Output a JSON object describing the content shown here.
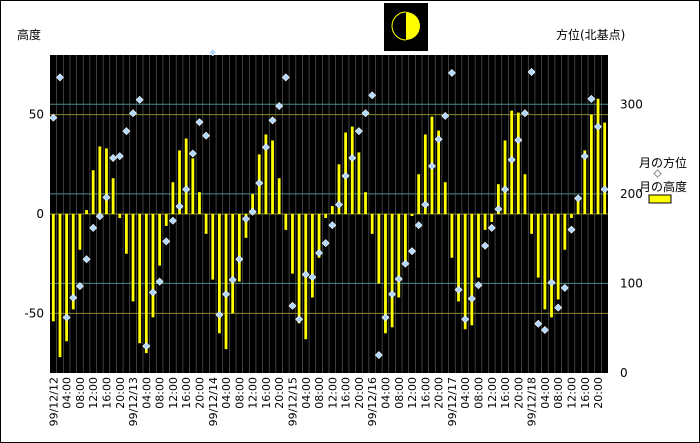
{
  "chart_data": {
    "type": "bar",
    "title": "",
    "y_left_label": "高度",
    "y_right_label": "方位(北基点)",
    "y_left_ticks": [
      50,
      0,
      -50
    ],
    "y_right_ticks": [
      300,
      200,
      100,
      0
    ],
    "ylim_left": [
      -80,
      80
    ],
    "ylim_right": [
      0,
      355
    ],
    "grid": true,
    "legend_position": "right",
    "x_tick_labels": [
      "99/12/12",
      "04:00",
      "08:00",
      "12:00",
      "16:00",
      "20:00",
      "99/12/13",
      "04:00",
      "08:00",
      "12:00",
      "16:00",
      "20:00",
      "99/12/14",
      "04:00",
      "08:00",
      "12:00",
      "16:00",
      "20:00",
      "99/12/15",
      "04:00",
      "08:00",
      "12:00",
      "16:00",
      "20:00",
      "99/12/16",
      "04:00",
      "08:00",
      "12:00",
      "16:00",
      "20:00",
      "99/12/17",
      "04:00",
      "08:00",
      "12:00",
      "16:00",
      "20:00",
      "99/12/18",
      "04:00",
      "08:00",
      "12:00",
      "16:00",
      "20:00"
    ],
    "series": [
      {
        "name": "月の高度",
        "type": "bar",
        "axis": "left",
        "color": "#ffff00",
        "values": [
          -54,
          -72,
          -64,
          -48,
          -18,
          2,
          22,
          34,
          33,
          18,
          -2,
          -20,
          -44,
          -65,
          -70,
          -52,
          -26,
          -6,
          16,
          32,
          38,
          28,
          11,
          -10,
          -33,
          -60,
          -68,
          -50,
          -34,
          -12,
          10,
          30,
          40,
          37,
          18,
          -8,
          -30,
          -55,
          -63,
          -42,
          -22,
          -2,
          4,
          25,
          41,
          44,
          31,
          11,
          -10,
          -35,
          -60,
          -57,
          -42,
          -24,
          -1,
          20,
          40,
          49,
          42,
          16,
          -22,
          -44,
          -58,
          -56,
          -32,
          -8,
          -4,
          15,
          37,
          52,
          51,
          20,
          -10,
          -32,
          -48,
          -52,
          -43,
          -18,
          -2,
          7,
          32,
          50,
          58,
          46
        ]
      },
      {
        "name": "月の方位",
        "type": "scatter",
        "axis": "right",
        "color": "#b0d8ff",
        "values": [
          285,
          330,
          62,
          84,
          97,
          127,
          162,
          175,
          196,
          240,
          242,
          270,
          290,
          305,
          30,
          90,
          102,
          147,
          170,
          186,
          205,
          245,
          280,
          265,
          358,
          65,
          88,
          104,
          127,
          172,
          180,
          212,
          252,
          282,
          298,
          330,
          75,
          60,
          110,
          107,
          134,
          145,
          165,
          188,
          220,
          240,
          270,
          290,
          310,
          20,
          62,
          88,
          105,
          122,
          136,
          165,
          188,
          231,
          261,
          287,
          335,
          93,
          60,
          83,
          98,
          142,
          162,
          183,
          205,
          238,
          260,
          290,
          336,
          55,
          48,
          101,
          73,
          95,
          160,
          195,
          242,
          306,
          275,
          205
        ]
      }
    ]
  },
  "legend": {
    "azimuth_label": "月の方位",
    "altitude_label": "月の高度"
  },
  "moon_icon": "half-moon-icon"
}
